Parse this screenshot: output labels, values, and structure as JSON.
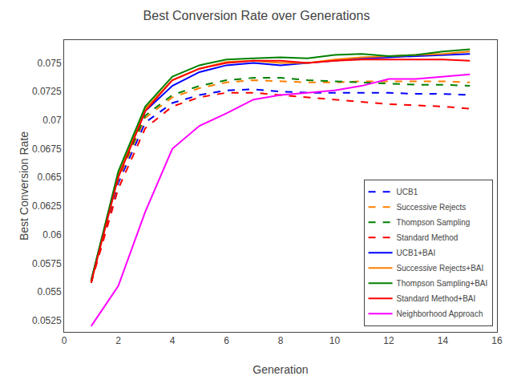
{
  "chart_data": {
    "type": "line",
    "title": "Best Conversion Rate over Generations",
    "xlabel": "Generation",
    "ylabel": "Best Conversion Rate",
    "x": [
      1,
      2,
      3,
      4,
      5,
      6,
      7,
      8,
      9,
      10,
      11,
      12,
      13,
      14,
      15
    ],
    "xlim": [
      0,
      16
    ],
    "xticks": [
      0,
      2,
      4,
      6,
      8,
      10,
      12,
      14,
      16
    ],
    "ylim": [
      0.0515,
      0.077
    ],
    "yticks": [
      0.0525,
      0.055,
      0.0575,
      0.06,
      0.0625,
      0.065,
      0.0675,
      0.07,
      0.0725,
      0.075
    ],
    "grid": false,
    "legend": "lower right",
    "series": [
      {
        "name": "UCB1",
        "color": "#0000ff",
        "line_style": "dashed",
        "values": [
          0.0558,
          0.0645,
          0.0698,
          0.0715,
          0.0722,
          0.0726,
          0.0727,
          0.0725,
          0.0724,
          0.0724,
          0.0724,
          0.0724,
          0.0723,
          0.0723,
          0.0722
        ]
      },
      {
        "name": "Successive Rejects",
        "color": "#ff7f00",
        "line_style": "dashed",
        "values": [
          0.0558,
          0.0648,
          0.0702,
          0.072,
          0.0728,
          0.0733,
          0.0735,
          0.0734,
          0.0733,
          0.0733,
          0.0734,
          0.0734,
          0.0734,
          0.0734,
          0.0733
        ]
      },
      {
        "name": "Thompson Sampling",
        "color": "#008000",
        "line_style": "dashed",
        "values": [
          0.0558,
          0.065,
          0.0704,
          0.0722,
          0.073,
          0.0735,
          0.0737,
          0.0737,
          0.0735,
          0.0734,
          0.0733,
          0.0732,
          0.0731,
          0.0731,
          0.073
        ]
      },
      {
        "name": "Standard Method",
        "color": "#ff0000",
        "line_style": "dashed",
        "values": [
          0.0558,
          0.064,
          0.0693,
          0.0712,
          0.072,
          0.0724,
          0.0724,
          0.0722,
          0.072,
          0.0718,
          0.0716,
          0.0714,
          0.0713,
          0.0712,
          0.071
        ]
      },
      {
        "name": "UCB1+BAI",
        "color": "#0000ff",
        "line_style": "solid",
        "values": [
          0.056,
          0.0652,
          0.0708,
          0.073,
          0.0742,
          0.0748,
          0.075,
          0.0748,
          0.075,
          0.0752,
          0.0754,
          0.0755,
          0.0756,
          0.0757,
          0.0758
        ]
      },
      {
        "name": "Successive Rejects+BAI",
        "color": "#ff7f00",
        "line_style": "solid",
        "values": [
          0.056,
          0.0652,
          0.071,
          0.0735,
          0.0745,
          0.0751,
          0.0752,
          0.075,
          0.075,
          0.0753,
          0.0755,
          0.0756,
          0.0757,
          0.0758,
          0.076
        ]
      },
      {
        "name": "Thompson Sampling+BAI",
        "color": "#008000",
        "line_style": "solid",
        "values": [
          0.056,
          0.0655,
          0.0712,
          0.0738,
          0.0748,
          0.0753,
          0.0754,
          0.0755,
          0.0754,
          0.0757,
          0.0758,
          0.0756,
          0.0757,
          0.076,
          0.0762
        ]
      },
      {
        "name": "Standard Method+BAI",
        "color": "#ff0000",
        "line_style": "solid",
        "values": [
          0.0558,
          0.065,
          0.0708,
          0.0735,
          0.0745,
          0.075,
          0.0752,
          0.0752,
          0.075,
          0.0752,
          0.0753,
          0.0753,
          0.0753,
          0.0753,
          0.0752
        ]
      },
      {
        "name": "Neighborhood Approach",
        "color": "#ff00ff",
        "line_style": "solid",
        "values": [
          0.052,
          0.0555,
          0.062,
          0.0675,
          0.0695,
          0.0706,
          0.0718,
          0.0722,
          0.0724,
          0.0726,
          0.073,
          0.0736,
          0.0736,
          0.0738,
          0.074
        ]
      }
    ]
  }
}
